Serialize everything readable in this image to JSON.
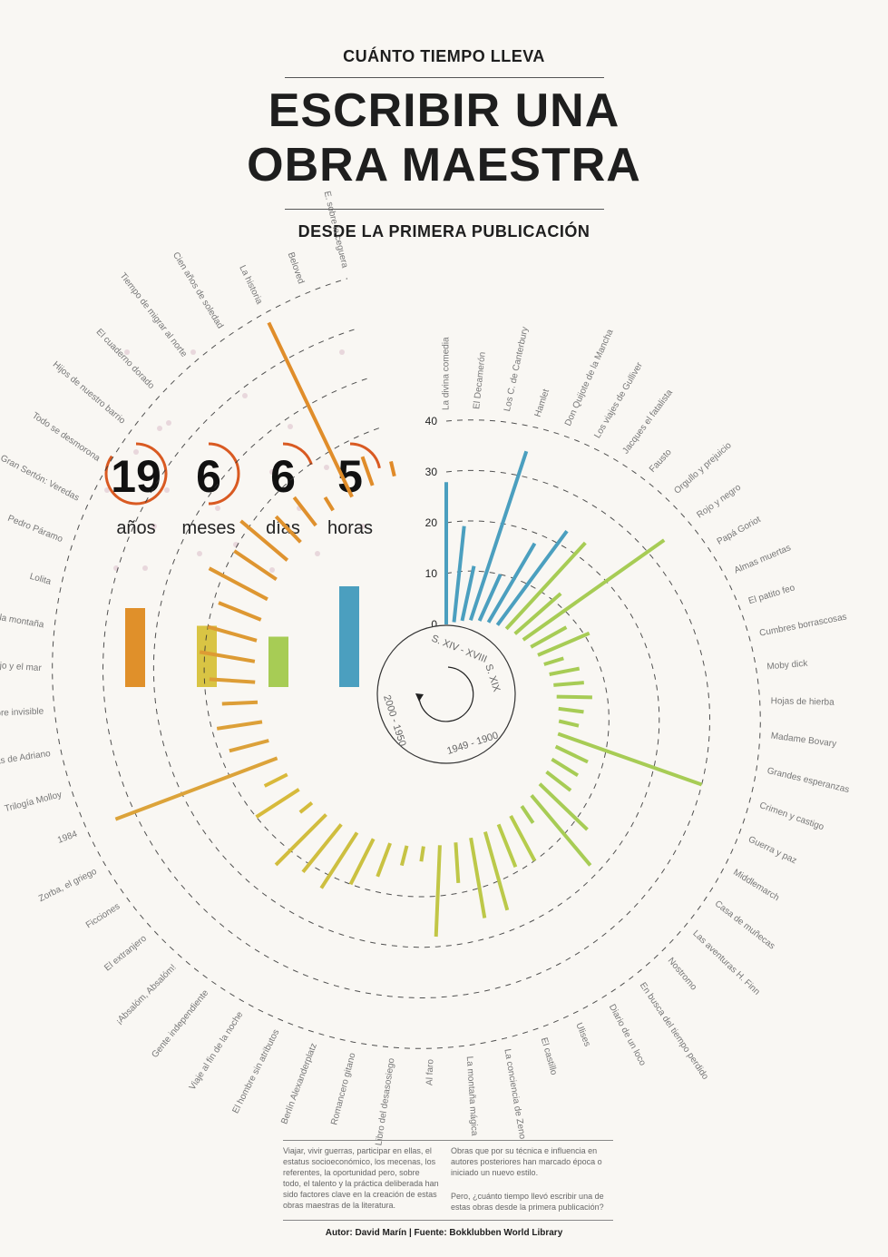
{
  "header": {
    "kicker": "CUÁNTO TIEMPO LLEVA",
    "title_line1": "ESCRIBIR UNA",
    "title_line2": "OBRA MAESTRA",
    "subtitle": "DESDE LA PRIMERA PUBLICACIÓN"
  },
  "average": {
    "counters": [
      {
        "value": "19",
        "unit": "años",
        "fraction": 0.85
      },
      {
        "value": "6",
        "unit": "meses",
        "fraction": 0.5
      },
      {
        "value": "6",
        "unit": "días",
        "fraction": 0.2
      },
      {
        "value": "5",
        "unit": "horas",
        "fraction": 0.22
      }
    ],
    "era_colors": [
      "#e0902a",
      "#d9c444",
      "#a7cc55",
      "#4b9fbf"
    ],
    "era_bar_values": [
      0.58,
      0.45,
      0.37,
      0.74
    ]
  },
  "chart_data": {
    "type": "bar",
    "layout": "radial spiral",
    "r_ticks": [
      "0",
      "10",
      "20",
      "30",
      "40"
    ],
    "r_range": [
      0,
      40
    ],
    "eras": [
      {
        "label": "S. XIV - XVIII",
        "color": "#4b9fbf"
      },
      {
        "label": "S. XIX",
        "color": "#a7cc55"
      },
      {
        "label": "1949 - 1900",
        "color": "#d9c444"
      },
      {
        "label": "2000 - 1950",
        "color": "#e0902a"
      }
    ],
    "categories": [
      "La divina comedia",
      "El Decamerón",
      "Los C. de Canterbury",
      "Hamlet",
      "Don Quijote de la Mancha",
      "Los viajes de Gulliver",
      "Jacques el fatalista",
      "Fausto",
      "Orgullo y prejuicio",
      "Rojo y negro",
      "Papá Goriot",
      "Almas muertas",
      "El patito feo",
      "Cumbres borrascosas",
      "Moby dick",
      "Hojas de hierba",
      "Madame Bovary",
      "Grandes esperanzas",
      "Crimen y castigo",
      "Guerra y paz",
      "Middlemarch",
      "Casa de muñecas",
      "Las aventuras H. Finn",
      "Nostromo",
      "En busca del tiempo perdido",
      "Diario de un loco",
      "Ulises",
      "El castillo",
      "La conciencia de Zeno",
      "La montaña mágica",
      "Al faro",
      "Libro del desasosiego",
      "Romancero gitano",
      "Berlín Alexanderplatz",
      "El hombre sin atributos",
      "Viaje al fin de la noche",
      "Gente independiente",
      "¡Absalóm, Absalóm!",
      "El extranjero",
      "Ficciones",
      "Zorba, el griego",
      "1984",
      "Trilogía Molloy",
      "Memorias de Adriano",
      "El hombre invisible",
      "El viejo y el mar",
      "El rumor de la montaña",
      "Lolita",
      "Pedro Páramo",
      "Gran Sertón: Veredas",
      "Todo se desmorona",
      "Hijos de nuestro barrio",
      "El cuaderno dorado",
      "Tiempo de migrar al norte",
      "Cien años de soledad",
      "La historia",
      "Beloved",
      "E. sobre la ceguera"
    ],
    "values": [
      28,
      19,
      11,
      35,
      10,
      18,
      23,
      23,
      12,
      34,
      8,
      11,
      4,
      6,
      6,
      7,
      5,
      4,
      30,
      7,
      6,
      6,
      13,
      18,
      4,
      10,
      9,
      16,
      16,
      8,
      18,
      3,
      4,
      7,
      10,
      13,
      12,
      14,
      3,
      10,
      5,
      34,
      8,
      9,
      7,
      9,
      11,
      10,
      9,
      13,
      10,
      12,
      7,
      7,
      3,
      38,
      6,
      3
    ]
  },
  "footer": {
    "col1": "Viajar, vivir guerras, participar en ellas, el estatus socioeconómico, los mecenas, los referentes, la oportunidad pero, sobre todo, el talento y la práctica deliberada han sido factores clave en la creación de estas obras maestras de la literatura.",
    "col2a": "Obras que por su técnica e influencia en autores posteriores han marcado época o iniciado un nuevo estilo.",
    "col2b": "Pero, ¿cuánto tiempo llevó escribir una de estas obras desde la primera publicación?",
    "credit": "Autor: David Marín | Fuente: Bokklubben World Library"
  }
}
